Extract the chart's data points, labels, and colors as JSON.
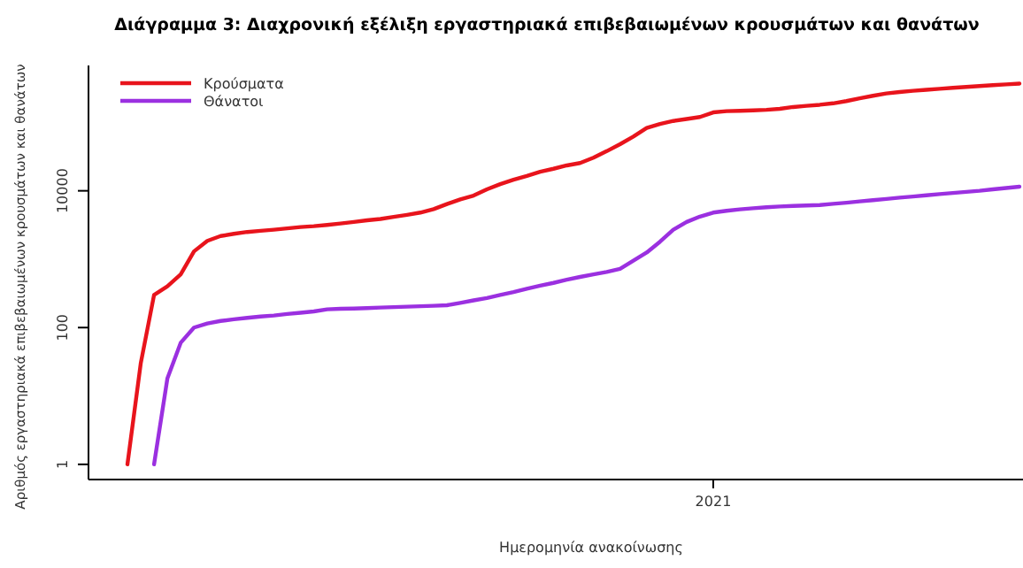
{
  "chart_data": {
    "type": "line",
    "title": "Διάγραμμα 3: Διαχρονική εξέλιξη εργαστηριακά επιβεβαιωμένων κρουσμάτων και θανάτων",
    "xlabel": "Ημερομηνία ανακοίνωσης",
    "ylabel": "Αριθμός εργαστηριακά επιβεβαιωμένων κρουσμάτων και θανάτων",
    "log": true,
    "grid": false,
    "legend": "top left",
    "marker": "none",
    "line_style": "solid",
    "categories": [
      null,
      null,
      null,
      null,
      null,
      null,
      null,
      null,
      null,
      null,
      null,
      null,
      null,
      null,
      null,
      null,
      null,
      null,
      null,
      null,
      null,
      null,
      null,
      null,
      null,
      null,
      null,
      null,
      null,
      null,
      null,
      null,
      null,
      null,
      null,
      null,
      null,
      null,
      null,
      null,
      null,
      null,
      null,
      null,
      "2021",
      null,
      null,
      null,
      null,
      null,
      null,
      null,
      null,
      null,
      null,
      null,
      null,
      null,
      null,
      null,
      null,
      null,
      null,
      null,
      null,
      null,
      null,
      null
    ],
    "ylim": [
      0.6,
      680000
    ],
    "yticks": [
      1,
      100,
      10000
    ],
    "series": [
      {
        "name": "Κρούσματα",
        "color": "#e8141c",
        "values": [
          1,
          30,
          300,
          400,
          600,
          1300,
          1850,
          2180,
          2350,
          2500,
          2600,
          2700,
          2820,
          2950,
          3040,
          3170,
          3330,
          3500,
          3700,
          3870,
          4150,
          4450,
          4800,
          5400,
          6400,
          7500,
          8500,
          10500,
          12500,
          14500,
          16500,
          19000,
          21000,
          23500,
          25500,
          30500,
          38000,
          48000,
          62000,
          83000,
          95000,
          105000,
          112000,
          120000,
          140000,
          146000,
          148000,
          150000,
          153000,
          158000,
          168000,
          175000,
          181000,
          190000,
          205000,
          225000,
          245000,
          265000,
          278000,
          290000,
          300000,
          310000,
          320000,
          330000,
          340000,
          350000,
          360000,
          370000
        ]
      },
      {
        "name": "Θάνατοι",
        "color": "#9b30e0",
        "values": [
          null,
          null,
          1,
          18,
          60,
          100,
          115,
          125,
          132,
          139,
          145,
          150,
          158,
          165,
          172,
          185,
          188,
          190,
          193,
          196,
          199,
          202,
          205,
          208,
          212,
          230,
          250,
          270,
          300,
          330,
          370,
          410,
          450,
          500,
          550,
          600,
          650,
          720,
          950,
          1250,
          1800,
          2700,
          3500,
          4200,
          4800,
          5100,
          5350,
          5550,
          5750,
          5900,
          6000,
          6100,
          6200,
          6450,
          6700,
          7000,
          7300,
          7600,
          7950,
          8250,
          8600,
          8950,
          9300,
          9650,
          10000,
          10500,
          11000,
          11500
        ]
      }
    ]
  }
}
